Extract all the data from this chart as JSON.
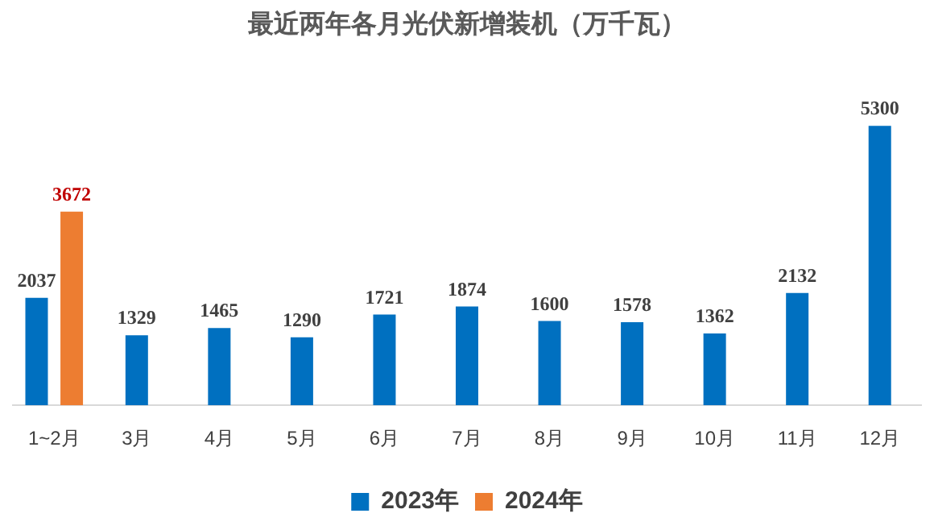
{
  "chart_data": {
    "type": "bar",
    "title": "最近两年各月光伏新增装机（万千瓦）",
    "categories": [
      "1~2月",
      "3月",
      "4月",
      "5月",
      "6月",
      "7月",
      "8月",
      "9月",
      "10月",
      "11月",
      "12月"
    ],
    "series": [
      {
        "name": "2023年",
        "color": "#0070c0",
        "values": [
          2037,
          1329,
          1465,
          1290,
          1721,
          1874,
          1600,
          1578,
          1362,
          2132,
          5300
        ]
      },
      {
        "name": "2024年",
        "color": "#ed7d31",
        "values": [
          3672,
          null,
          null,
          null,
          null,
          null,
          null,
          null,
          null,
          null,
          null
        ]
      }
    ],
    "data_labels": true,
    "grid": false,
    "legend": "bottom"
  }
}
